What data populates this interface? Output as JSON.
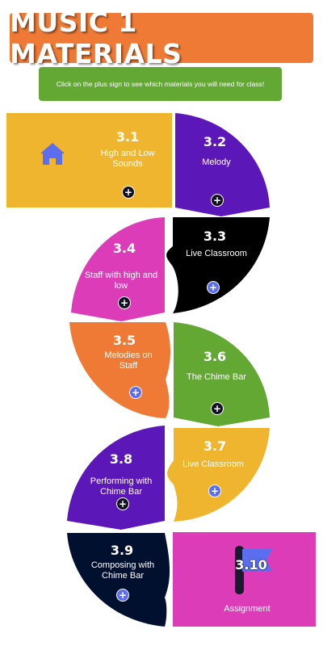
{
  "header": {
    "title": "MUSIC 1 MATERIALS",
    "instructions": "Click on the plus sign to see which materials you will need for class!"
  },
  "colors": {
    "title_bg": "#ef7a35",
    "instructions_bg": "#62a832",
    "yellow": "#f0b52e",
    "purple": "#5b17b8",
    "black": "#000000",
    "magenta": "#dc3cb8",
    "orange": "#ef7a35",
    "green": "#62a832",
    "navy": "#01102e",
    "accent_blue": "#5b6ef0"
  },
  "tiles": [
    {
      "id": "3.1",
      "number": "3.1",
      "name": "High and Low Sounds",
      "plus": "+",
      "icon": "home-icon"
    },
    {
      "id": "3.2",
      "number": "3.2",
      "name": "Melody",
      "plus": "+"
    },
    {
      "id": "3.3",
      "number": "3.3",
      "name": "Live Classroom",
      "plus": "+"
    },
    {
      "id": "3.4",
      "number": "3.4",
      "name": "Staff with high and low",
      "plus": "+"
    },
    {
      "id": "3.5",
      "number": "3.5",
      "name": "Melodies on Staff",
      "plus": "+"
    },
    {
      "id": "3.6",
      "number": "3.6",
      "name": "The Chime Bar",
      "plus": "+"
    },
    {
      "id": "3.7",
      "number": "3.7",
      "name": "Live Classroom",
      "plus": "+"
    },
    {
      "id": "3.8",
      "number": "3.8",
      "name": "Performing with Chime Bar",
      "plus": "+"
    },
    {
      "id": "3.9",
      "number": "3.9",
      "name": "Composing with Chime Bar",
      "plus": "+"
    },
    {
      "id": "3.10",
      "number": "3.10",
      "name": "Assignment",
      "icon": "flag-icon"
    }
  ]
}
